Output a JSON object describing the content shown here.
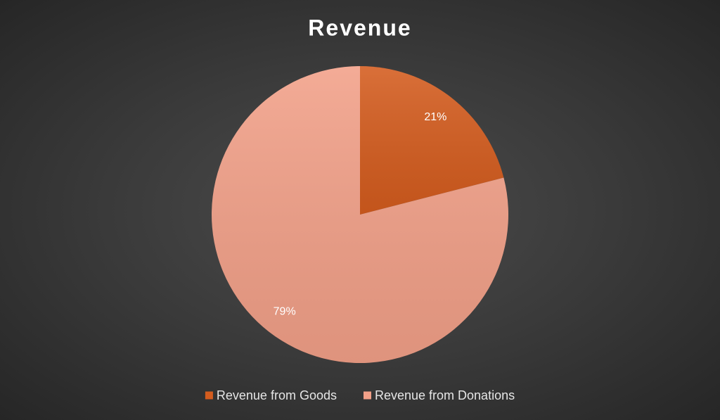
{
  "chart_data": {
    "type": "pie",
    "title": "Revenue",
    "categories": [
      "Revenue from Goods",
      "Revenue from Donations"
    ],
    "values": [
      21,
      79
    ],
    "value_labels": [
      "21%",
      "79%"
    ],
    "colors": [
      "#d45c1e",
      "#f2a088"
    ],
    "legend": "bottom"
  }
}
